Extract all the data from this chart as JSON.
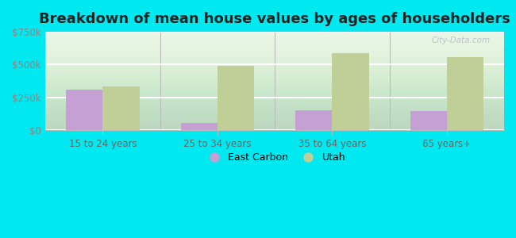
{
  "title": "Breakdown of mean house values by ages of householders",
  "categories": [
    "15 to 24 years",
    "25 to 34 years",
    "35 to 64 years",
    "65 years+"
  ],
  "east_carbon": [
    310000,
    55000,
    155000,
    145000
  ],
  "utah": [
    335000,
    490000,
    590000,
    560000
  ],
  "east_carbon_color": "#c4a0d4",
  "utah_color": "#bfcf96",
  "background_color": "#00e8f0",
  "ylim": [
    0,
    750000
  ],
  "yticks": [
    0,
    250000,
    500000,
    750000
  ],
  "ytick_labels": [
    "$0",
    "$250k",
    "$500k",
    "$750k"
  ],
  "title_fontsize": 13,
  "legend_labels": [
    "East Carbon",
    "Utah"
  ],
  "watermark": "City-Data.com"
}
